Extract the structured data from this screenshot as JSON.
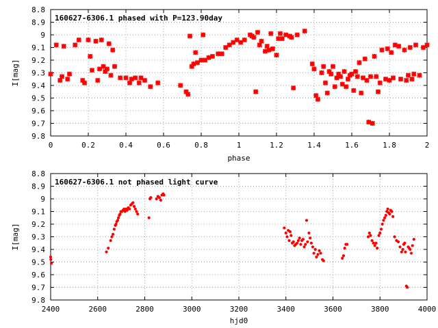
{
  "chart_data": [
    {
      "type": "scatter",
      "title": "160627-6306.1 phased with P=123.90day",
      "xlabel": "phase",
      "ylabel": "I[mag]",
      "xlim": [
        0,
        2
      ],
      "ylim": [
        8.8,
        9.8
      ],
      "y_inverted": true,
      "grid": true,
      "point_color": "#ff0000",
      "x_ticks": [
        "0",
        "0.2",
        "0.4",
        "0.6",
        "0.8",
        "1",
        "1.2",
        "1.4",
        "1.6",
        "1.8",
        "2"
      ],
      "y_ticks": [
        "8.8",
        "8.9",
        "9",
        "9.1",
        "9.2",
        "9.3",
        "9.4",
        "9.5",
        "9.6",
        "9.7",
        "9.8"
      ],
      "series": [
        {
          "x": [
            0.0,
            0.03,
            0.05,
            0.06,
            0.07,
            0.09,
            0.1,
            0.13,
            0.15,
            0.17,
            0.18,
            0.2,
            0.21,
            0.22,
            0.24,
            0.25,
            0.26,
            0.27,
            0.28,
            0.29,
            0.3,
            0.31,
            0.32,
            0.33,
            0.34,
            0.37,
            0.4,
            0.42,
            0.43,
            0.45,
            0.47,
            0.48,
            0.5,
            0.53,
            0.57,
            0.69,
            0.72,
            0.73,
            0.75,
            0.74,
            0.76,
            0.77,
            0.78,
            0.8,
            0.81,
            0.82,
            0.84,
            0.86,
            0.89,
            0.91,
            0.93,
            0.95,
            0.97,
            0.99,
            1.01,
            1.03,
            1.06,
            1.07,
            1.08,
            1.09,
            1.1,
            1.11,
            1.12,
            1.14,
            1.15,
            1.16,
            1.17,
            1.18,
            1.2,
            1.21,
            1.22,
            1.23,
            1.25,
            1.27,
            1.28,
            1.29,
            1.31,
            1.35,
            1.39,
            1.4,
            1.41,
            1.42,
            1.44,
            1.45,
            1.46,
            1.47,
            1.48,
            1.49,
            1.5,
            1.51,
            1.52,
            1.53,
            1.54,
            1.55,
            1.56,
            1.57,
            1.58,
            1.59,
            1.6,
            1.61,
            1.62,
            1.63,
            1.64,
            1.65,
            1.66,
            1.67,
            1.68,
            1.69,
            1.7,
            1.71,
            1.72,
            1.73,
            1.74,
            1.75,
            1.76,
            1.78,
            1.79,
            1.8,
            1.81,
            1.82,
            1.83,
            1.85,
            1.86,
            1.88,
            1.89,
            1.9,
            1.91,
            1.92,
            1.93,
            1.94,
            1.96,
            1.98,
            2.0
          ],
          "y": [
            9.31,
            9.08,
            9.36,
            9.33,
            9.09,
            9.35,
            9.31,
            9.08,
            9.04,
            9.36,
            9.38,
            9.04,
            9.17,
            9.28,
            9.05,
            9.36,
            9.27,
            9.04,
            9.25,
            9.29,
            9.27,
            9.07,
            9.32,
            9.12,
            9.25,
            9.34,
            9.34,
            9.38,
            9.35,
            9.34,
            9.38,
            9.34,
            9.36,
            9.41,
            9.38,
            9.4,
            9.45,
            9.47,
            9.25,
            9.01,
            9.23,
            9.14,
            9.22,
            9.2,
            9.0,
            9.2,
            9.18,
            9.17,
            9.15,
            9.15,
            9.1,
            9.08,
            9.06,
            9.04,
            9.06,
            9.04,
            9.0,
            9.01,
            9.02,
            9.45,
            8.98,
            9.08,
            9.05,
            9.13,
            9.09,
            9.12,
            8.99,
            9.11,
            9.16,
            9.03,
            8.99,
            9.03,
            9.0,
            9.01,
            9.02,
            9.42,
            9.0,
            8.97,
            9.23,
            9.27,
            9.48,
            9.51,
            9.3,
            9.25,
            9.38,
            9.46,
            9.29,
            9.31,
            9.25,
            9.41,
            9.34,
            9.31,
            9.33,
            9.39,
            9.29,
            9.41,
            9.35,
            9.32,
            9.31,
            9.44,
            9.29,
            9.33,
            9.22,
            9.46,
            9.34,
            9.19,
            9.36,
            9.69,
            9.33,
            9.7,
            9.17,
            9.33,
            9.45,
            9.38,
            9.12,
            9.35,
            9.11,
            9.36,
            9.14,
            9.34,
            9.08,
            9.09,
            9.35,
            9.12,
            9.36,
            9.32,
            9.1,
            9.35,
            9.31,
            9.08,
            9.32,
            9.1,
            9.08
          ]
        }
      ]
    },
    {
      "type": "scatter",
      "title": "160627-6306.1 not phased light curve",
      "xlabel": "hjd0",
      "ylabel": "I[mag]",
      "xlim": [
        2400,
        4000
      ],
      "ylim": [
        8.8,
        9.8
      ],
      "y_inverted": true,
      "grid": true,
      "point_color": "#ff0000",
      "x_ticks": [
        "2400",
        "2600",
        "2800",
        "3000",
        "3200",
        "3400",
        "3600",
        "3800",
        "4000"
      ],
      "y_ticks": [
        "8.8",
        "8.9",
        "9",
        "9.1",
        "9.2",
        "9.3",
        "9.4",
        "9.5",
        "9.6",
        "9.7",
        "9.8"
      ],
      "series": [
        {
          "x": [
            2400,
            2401,
            2403,
            2637,
            2645,
            2655,
            2660,
            2665,
            2670,
            2675,
            2678,
            2681,
            2685,
            2688,
            2692,
            2695,
            2699,
            2703,
            2708,
            2712,
            2716,
            2720,
            2725,
            2730,
            2735,
            2740,
            2745,
            2750,
            2755,
            2760,
            2765,
            2770,
            2818,
            2822,
            2826,
            2850,
            2856,
            2862,
            2868,
            2873,
            2878,
            2882,
            3393,
            3400,
            3405,
            3410,
            3414,
            3418,
            3422,
            3427,
            3432,
            3437,
            3442,
            3448,
            3453,
            3458,
            3463,
            3468,
            3473,
            3478,
            3483,
            3488,
            3492,
            3498,
            3503,
            3508,
            3514,
            3519,
            3525,
            3530,
            3536,
            3542,
            3548,
            3555,
            3560,
            3640,
            3645,
            3650,
            3655,
            3660,
            3750,
            3755,
            3760,
            3766,
            3772,
            3778,
            3783,
            3788,
            3795,
            3800,
            3805,
            3810,
            3815,
            3820,
            3825,
            3829,
            3833,
            3837,
            3841,
            3845,
            3850,
            3855,
            3862,
            3870,
            3878,
            3885,
            3892,
            3897,
            3901,
            3905,
            3908,
            3912,
            3916,
            3920,
            3924,
            3928,
            3933,
            3938,
            3944
          ],
          "y": [
            9.46,
            9.48,
            9.51,
            9.42,
            9.39,
            9.33,
            9.3,
            9.28,
            9.24,
            9.21,
            9.2,
            9.18,
            9.17,
            9.15,
            9.13,
            9.12,
            9.1,
            9.1,
            9.09,
            9.08,
            9.1,
            9.08,
            9.09,
            9.07,
            9.08,
            9.05,
            9.04,
            9.03,
            9.06,
            9.08,
            9.1,
            9.12,
            9.15,
            9.0,
            8.99,
            9.0,
            8.98,
            8.99,
            9.01,
            8.97,
            8.96,
            8.97,
            9.23,
            9.27,
            9.3,
            9.25,
            9.33,
            9.26,
            9.29,
            9.35,
            9.34,
            9.37,
            9.36,
            9.35,
            9.33,
            9.31,
            9.36,
            9.33,
            9.32,
            9.38,
            9.36,
            9.17,
            9.34,
            9.27,
            9.31,
            9.35,
            9.38,
            9.43,
            9.4,
            9.46,
            9.44,
            9.41,
            9.43,
            9.48,
            9.49,
            9.47,
            9.45,
            9.39,
            9.36,
            9.36,
            9.3,
            9.27,
            9.29,
            9.33,
            9.35,
            9.37,
            9.35,
            9.39,
            9.29,
            9.27,
            9.24,
            9.2,
            9.17,
            9.15,
            9.13,
            9.1,
            9.08,
            9.11,
            9.12,
            9.09,
            9.1,
            9.14,
            9.3,
            9.33,
            9.34,
            9.38,
            9.42,
            9.4,
            9.36,
            9.35,
            9.42,
            9.69,
            9.7,
            9.38,
            9.39,
            9.4,
            9.43,
            9.37,
            9.32
          ]
        }
      ]
    }
  ]
}
